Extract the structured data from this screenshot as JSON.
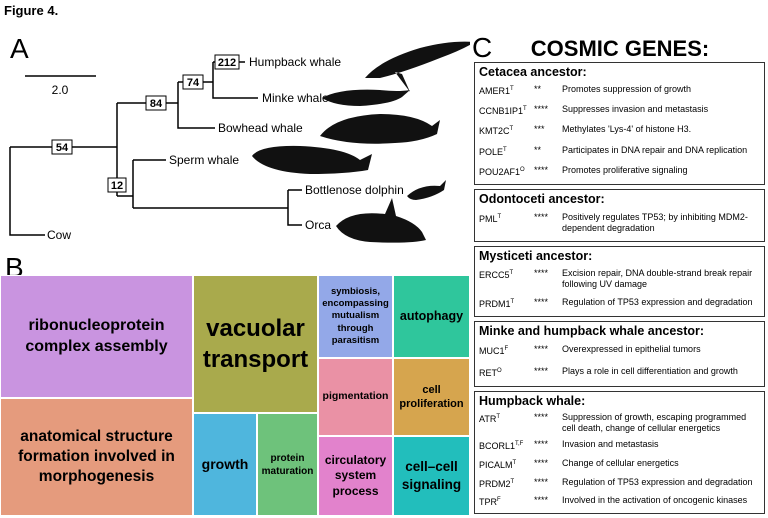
{
  "figure_label": "Figure 4.",
  "panel_a": {
    "label": "A",
    "scale_label": "2.0",
    "nodes": [
      54,
      84,
      74,
      212,
      12
    ],
    "leaves": [
      "Humpback whale",
      "Minke whale",
      "Bowhead whale",
      "Sperm whale",
      "Bottlenose dolphin",
      "Orca",
      "Cow"
    ]
  },
  "panel_b": {
    "label": "B",
    "tiles": [
      {
        "label": "ribonucleoprotein complex assembly",
        "color": "#c994e0"
      },
      {
        "label": "anatomical structure formation involved in morphogenesis",
        "color": "#e59b7d"
      },
      {
        "label": "vacuolar transport",
        "color": "#a9aa4c"
      },
      {
        "label": "growth",
        "color": "#4fb6dd"
      },
      {
        "label": "protein maturation",
        "color": "#6ec27b"
      },
      {
        "label": "symbiosis, encompassing mutualism through parasitism",
        "color": "#93a8e8"
      },
      {
        "label": "autophagy",
        "color": "#2fc69c"
      },
      {
        "label": "pigmentation",
        "color": "#ea91a5"
      },
      {
        "label": "cell proliferation",
        "color": "#d6a54e"
      },
      {
        "label": "circulatory system process",
        "color": "#e282cc"
      },
      {
        "label": "cell–cell signaling",
        "color": "#22bebc"
      }
    ]
  },
  "panel_c": {
    "label": "C",
    "title": "COSMIC GENES:",
    "groups": [
      {
        "heading": "Cetacea ancestor:",
        "genes": [
          {
            "name": "AMER1",
            "superscript": "T",
            "stars": "**",
            "description": "Promotes suppression of growth"
          },
          {
            "name": "CCNB1IP1",
            "superscript": "T",
            "stars": "****",
            "description": "Suppresses invasion and metastasis"
          },
          {
            "name": "KMT2C",
            "superscript": "T",
            "stars": "***",
            "description": "Methylates 'Lys-4' of histone H3."
          },
          {
            "name": "POLE",
            "superscript": "T",
            "stars": "**",
            "description": "Participates in DNA repair and DNA replication"
          },
          {
            "name": "POU2AF1",
            "superscript": "O",
            "stars": "****",
            "description": "Promotes proliferative signaling"
          }
        ]
      },
      {
        "heading": "Odontoceti ancestor:",
        "genes": [
          {
            "name": "PML",
            "superscript": "T",
            "stars": "****",
            "description": "Positively regulates TP53; by inhibiting MDM2-dependent degradation"
          }
        ]
      },
      {
        "heading": "Mysticeti ancestor:",
        "genes": [
          {
            "name": "ERCC5",
            "superscript": "T",
            "stars": "****",
            "description": "Excision repair, DNA double-strand break repair following UV damage"
          },
          {
            "name": "PRDM1",
            "superscript": "T",
            "stars": "****",
            "description": "Regulation of TP53 expression and degradation"
          }
        ]
      },
      {
        "heading": "Minke and humpback whale ancestor:",
        "genes": [
          {
            "name": "MUC1",
            "superscript": "F",
            "stars": "****",
            "description": "Overexpressed in epithelial tumors"
          },
          {
            "name": "RET",
            "superscript": "O",
            "stars": "****",
            "description": "Plays a role in cell differentiation and growth"
          }
        ]
      },
      {
        "heading": "Humpback whale:",
        "genes": [
          {
            "name": "ATR",
            "superscript": "T",
            "stars": "****",
            "description": "Suppression of growth, escaping programmed cell death, change of cellular energetics"
          },
          {
            "name": "BCORL1",
            "superscript": "T,F",
            "stars": "****",
            "description": "Invasion and metastasis"
          },
          {
            "name": "PICALM",
            "superscript": "T",
            "stars": "****",
            "description": "Change of cellular energetics"
          },
          {
            "name": "PRDM2",
            "superscript": "T",
            "stars": "****",
            "description": "Regulation of TP53 expression and degradation"
          },
          {
            "name": "TPR",
            "superscript": "F",
            "stars": "****",
            "description": "Involved in the activation of oncogenic kinases"
          }
        ]
      }
    ]
  }
}
